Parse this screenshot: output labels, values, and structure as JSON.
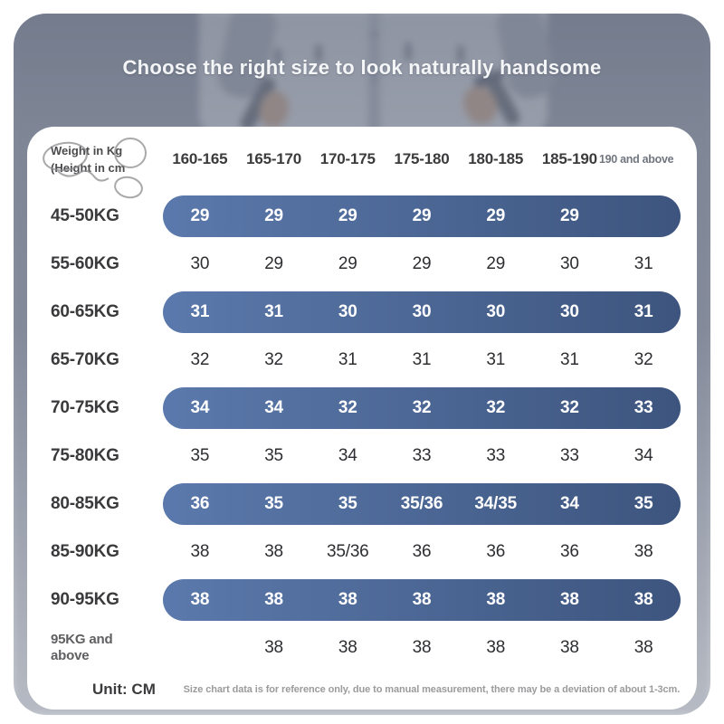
{
  "title": "Choose the right size to look naturally handsome",
  "corner": {
    "line1": "Weight in Kg",
    "line2": "(Height in cm"
  },
  "footer": {
    "unit": "Unit: CM",
    "note": "Size chart data is for reference only, due to manual measurement, there may be a deviation of about 1-3cm."
  },
  "colors": {
    "pill_start": "#5b79ac",
    "pill_end": "#3d557e",
    "photo_bg": "#8b92a1",
    "card_bg": "#ffffff"
  },
  "chart_data": {
    "type": "table",
    "title": "Choose the right size to look naturally handsome",
    "unit": "CM",
    "rows_label": "Weight in Kg",
    "columns_label": "Height in cm",
    "columns": [
      "160-165",
      "165-170",
      "170-175",
      "175-180",
      "180-185",
      "185-190",
      "190 and above"
    ],
    "rows": [
      {
        "label": "45-50KG",
        "highlight": true,
        "values": [
          "29",
          "29",
          "29",
          "29",
          "29",
          "29",
          ""
        ]
      },
      {
        "label": "55-60KG",
        "highlight": false,
        "values": [
          "30",
          "29",
          "29",
          "29",
          "29",
          "30",
          "31"
        ]
      },
      {
        "label": "60-65KG",
        "highlight": true,
        "values": [
          "31",
          "31",
          "30",
          "30",
          "30",
          "30",
          "31"
        ]
      },
      {
        "label": "65-70KG",
        "highlight": false,
        "values": [
          "32",
          "32",
          "31",
          "31",
          "31",
          "31",
          "32"
        ]
      },
      {
        "label": "70-75KG",
        "highlight": true,
        "values": [
          "34",
          "34",
          "32",
          "32",
          "32",
          "32",
          "33"
        ]
      },
      {
        "label": "75-80KG",
        "highlight": false,
        "values": [
          "35",
          "35",
          "34",
          "33",
          "33",
          "33",
          "34"
        ]
      },
      {
        "label": "80-85KG",
        "highlight": true,
        "values": [
          "36",
          "35",
          "35",
          "35/36",
          "34/35",
          "34",
          "35"
        ]
      },
      {
        "label": "85-90KG",
        "highlight": false,
        "values": [
          "38",
          "38",
          "35/36",
          "36",
          "36",
          "36",
          "38"
        ]
      },
      {
        "label": "90-95KG",
        "highlight": true,
        "values": [
          "38",
          "38",
          "38",
          "38",
          "38",
          "38",
          "38"
        ]
      },
      {
        "label": "95KG and\nabove",
        "highlight": false,
        "small_label": true,
        "values": [
          "",
          "38",
          "38",
          "38",
          "38",
          "38",
          "38"
        ]
      }
    ]
  }
}
